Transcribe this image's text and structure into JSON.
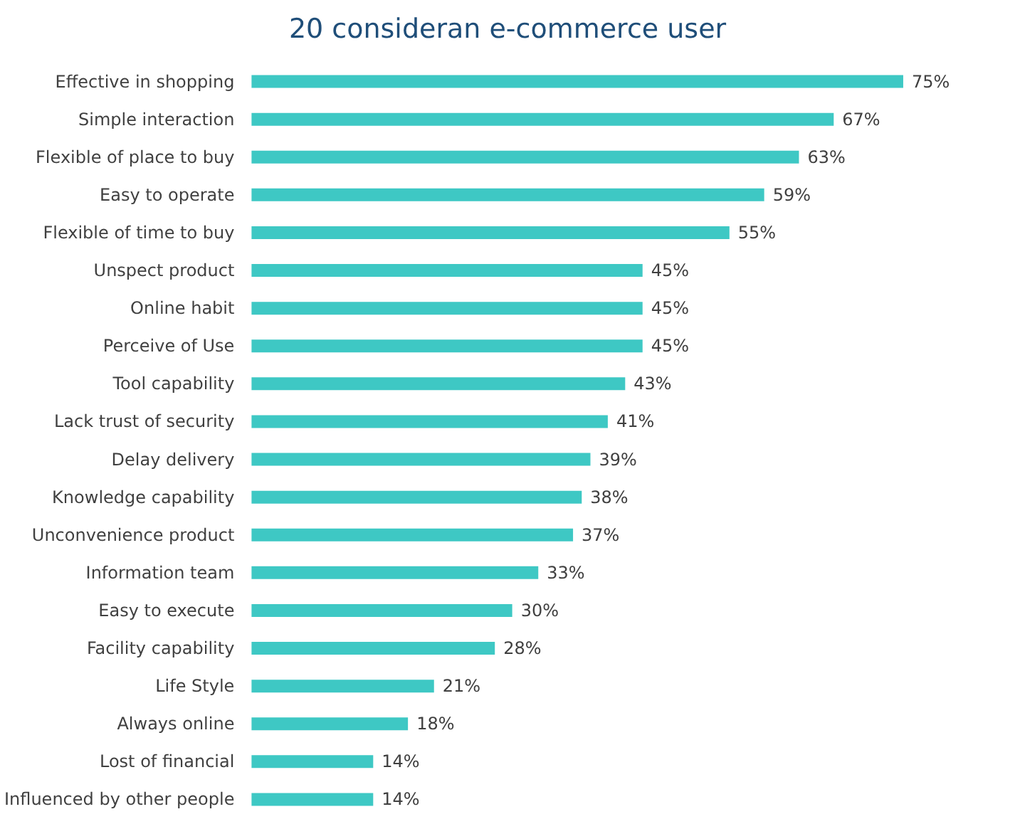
{
  "chart_data": {
    "type": "bar",
    "title": "20 consideran e-commerce user",
    "orientation": "horizontal",
    "categories": [
      "Effective in shopping",
      "Simple interaction",
      "Flexible of place to buy",
      "Easy to operate",
      "Flexible of time to buy",
      "Unspect product",
      "Online habit",
      "Perceive of Use",
      "Tool capability",
      "Lack trust of security",
      "Delay delivery",
      "Knowledge capability",
      "Unconvenience product",
      "Information team",
      "Easy to execute",
      "Facility capability",
      "Life Style",
      "Always online",
      "Lost of financial",
      "Influenced by other people"
    ],
    "values": [
      75,
      67,
      63,
      59,
      55,
      45,
      45,
      45,
      43,
      41,
      39,
      38,
      37,
      33,
      30,
      28,
      21,
      18,
      14,
      14
    ],
    "value_labels": [
      "75%",
      "67%",
      "63%",
      "59%",
      "55%",
      "45%",
      "45%",
      "45%",
      "43%",
      "41%",
      "39%",
      "38%",
      "37%",
      "33%",
      "30%",
      "28%",
      "21%",
      "18%",
      "14%",
      "14%"
    ],
    "color": "#3ec8c4"
  }
}
